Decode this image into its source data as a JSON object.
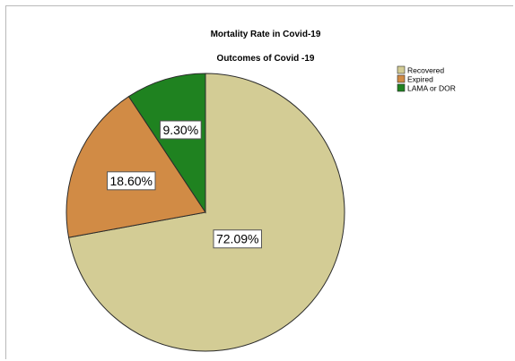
{
  "chart_data": {
    "type": "pie",
    "title": "Mortality Rate in Covid-19",
    "subtitle": "Outcomes of Covid -19",
    "categories": [
      "Recovered",
      "Expired",
      "LAMA or DOR"
    ],
    "values": [
      72.09,
      18.6,
      9.3
    ],
    "data_labels": [
      "72.09%",
      "18.60%",
      "9.30%"
    ],
    "colors": [
      "#d3cc95",
      "#d18b45",
      "#1f8220"
    ],
    "legend": {
      "placement": "top-right",
      "entries": [
        "Recovered",
        "Expired",
        "LAMA or DOR"
      ]
    },
    "start_angle_deg": 0,
    "direction": "clockwise"
  }
}
